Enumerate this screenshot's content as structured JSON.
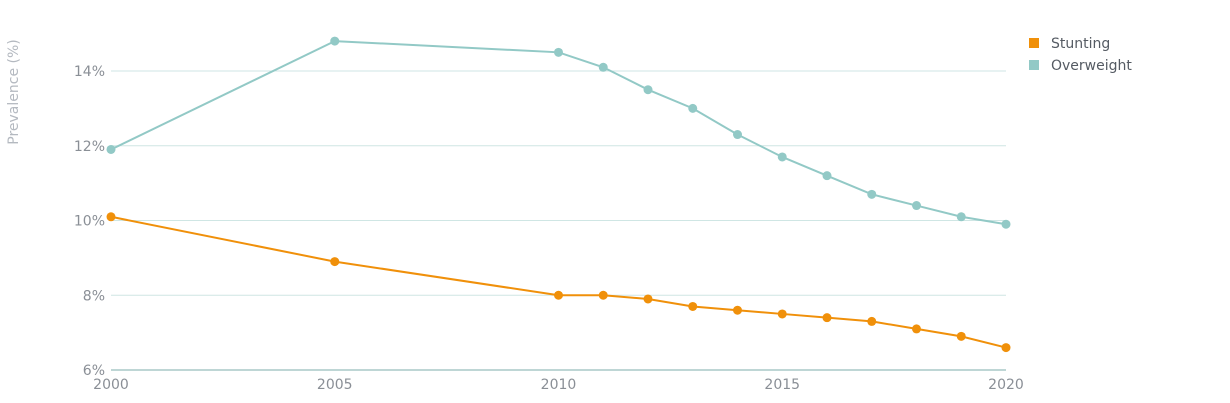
{
  "chart_data": {
    "type": "line",
    "title": "",
    "xlabel": "",
    "ylabel": "Prevalence (%)",
    "xlim": [
      2000,
      2020
    ],
    "ylim": [
      6,
      14
    ],
    "x_ticks": [
      2000,
      2005,
      2010,
      2015,
      2020
    ],
    "y_ticks": [
      6,
      8,
      10,
      12,
      14
    ],
    "y_tick_labels": [
      "6%",
      "8%",
      "10%",
      "12%",
      "14%"
    ],
    "grid": true,
    "legend_position": "top-right",
    "series": [
      {
        "name": "Stunting",
        "color": "#f0900a",
        "x": [
          2000,
          2005,
          2010,
          2011,
          2012,
          2013,
          2014,
          2015,
          2016,
          2017,
          2018,
          2019,
          2020
        ],
        "values": [
          10.1,
          8.9,
          8.0,
          8.0,
          7.9,
          7.7,
          7.6,
          7.5,
          7.4,
          7.3,
          7.1,
          6.9,
          6.6
        ]
      },
      {
        "name": "Overweight",
        "color": "#92c9c6",
        "x": [
          2000,
          2005,
          2010,
          2011,
          2012,
          2013,
          2014,
          2015,
          2016,
          2017,
          2018,
          2019,
          2020
        ],
        "values": [
          11.9,
          14.8,
          14.5,
          14.1,
          13.5,
          13.0,
          12.3,
          11.7,
          11.2,
          10.7,
          10.4,
          10.1,
          9.9
        ]
      }
    ]
  }
}
